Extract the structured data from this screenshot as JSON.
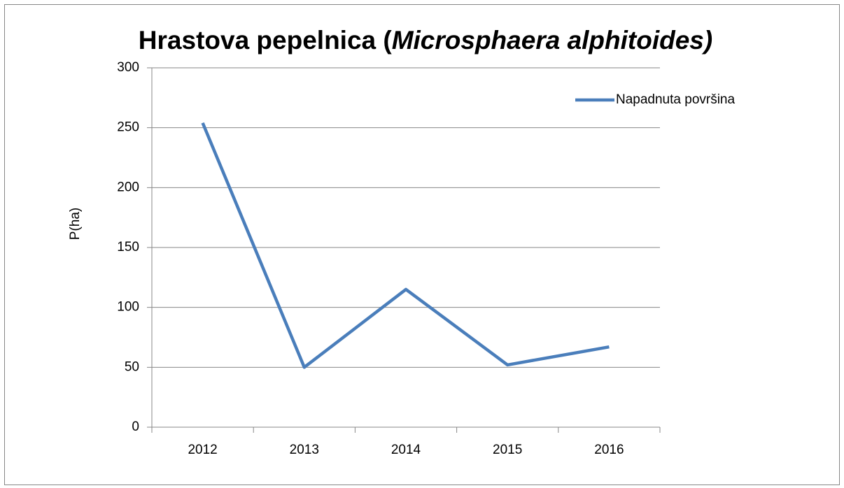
{
  "chart_data": {
    "type": "line",
    "title": [
      "Hrastova pepelnica (",
      "Microsphaera alphitoides)"
    ],
    "y_label": "P(ha)",
    "categories": [
      "2012",
      "2013",
      "2014",
      "2015",
      "2016"
    ],
    "series": [
      {
        "name": "Napadnuta površina",
        "color": "#4a7ebb",
        "values": [
          254,
          50,
          115,
          52,
          67
        ]
      }
    ],
    "ylim": [
      0,
      300
    ],
    "yticks": [
      0,
      50,
      100,
      150,
      200,
      250,
      300
    ],
    "grid": true,
    "legend": "right"
  }
}
